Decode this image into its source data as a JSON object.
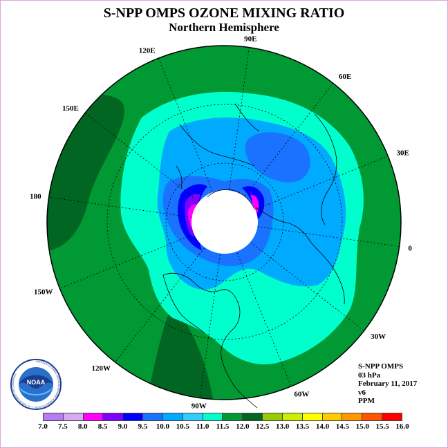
{
  "title": "S-NPP OMPS OZONE MIXING RATIO",
  "subtitle": "Northern Hemisphere",
  "info": {
    "instrument": "S-NPP OMPS",
    "level": "03 hPa",
    "date": "February 11, 2017",
    "version": "v6",
    "units": "PPM"
  },
  "longitude_labels": [
    {
      "id": "lon-90e",
      "text": "90E",
      "angle_deg": -82
    },
    {
      "id": "lon-60e",
      "text": "60E",
      "angle_deg": -52
    },
    {
      "id": "lon-30e",
      "text": "30E",
      "angle_deg": -22
    },
    {
      "id": "lon-0",
      "text": "0",
      "angle_deg": 8
    },
    {
      "id": "lon-30w",
      "text": "30W",
      "angle_deg": 38
    },
    {
      "id": "lon-60w",
      "text": "60W",
      "angle_deg": 68
    },
    {
      "id": "lon-90w",
      "text": "90W",
      "angle_deg": 98
    },
    {
      "id": "lon-120w",
      "text": "120W",
      "angle_deg": 128
    },
    {
      "id": "lon-150w",
      "text": "150W",
      "angle_deg": 158
    },
    {
      "id": "lon-180",
      "text": "180",
      "angle_deg": 188
    },
    {
      "id": "lon-150e",
      "text": "150E",
      "angle_deg": 218
    },
    {
      "id": "lon-120e",
      "text": "120E",
      "angle_deg": 248
    }
  ],
  "colorbar": {
    "ticks": [
      "7.0",
      "7.5",
      "8.0",
      "8.5",
      "9.0",
      "9.5",
      "10.0",
      "10.5",
      "11.0",
      "11.5",
      "12.0",
      "12.5",
      "13.0",
      "13.5",
      "14.0",
      "14.5",
      "15.0",
      "15.5",
      "16.0"
    ],
    "colors": [
      "#b57cf5",
      "#d8aaf0",
      "#ff00ff",
      "#8000ff",
      "#0000ff",
      "#1a73ff",
      "#00aaff",
      "#33ccff",
      "#00ffcc",
      "#009933",
      "#006622",
      "#99cc00",
      "#ccee00",
      "#ffff00",
      "#ffcc00",
      "#ff9900",
      "#ff5500",
      "#ff0000",
      "#8b4513"
    ]
  },
  "fields": {
    "ocean": "#009933",
    "dark": "#006622",
    "cyan": "#00ffcc",
    "light_blue": "#00aaff",
    "mid_blue": "#1a73ff",
    "blue": "#0000ff",
    "violet": "#8000ff",
    "magenta": "#ff00ff",
    "no_data": "#ffffff"
  },
  "logo": {
    "text": "NOAA",
    "ring_text": "NATIONAL OCEANIC AND ATMOSPHERIC ADMINISTRATION · U.S. DEPARTMENT OF COMMERCE"
  }
}
